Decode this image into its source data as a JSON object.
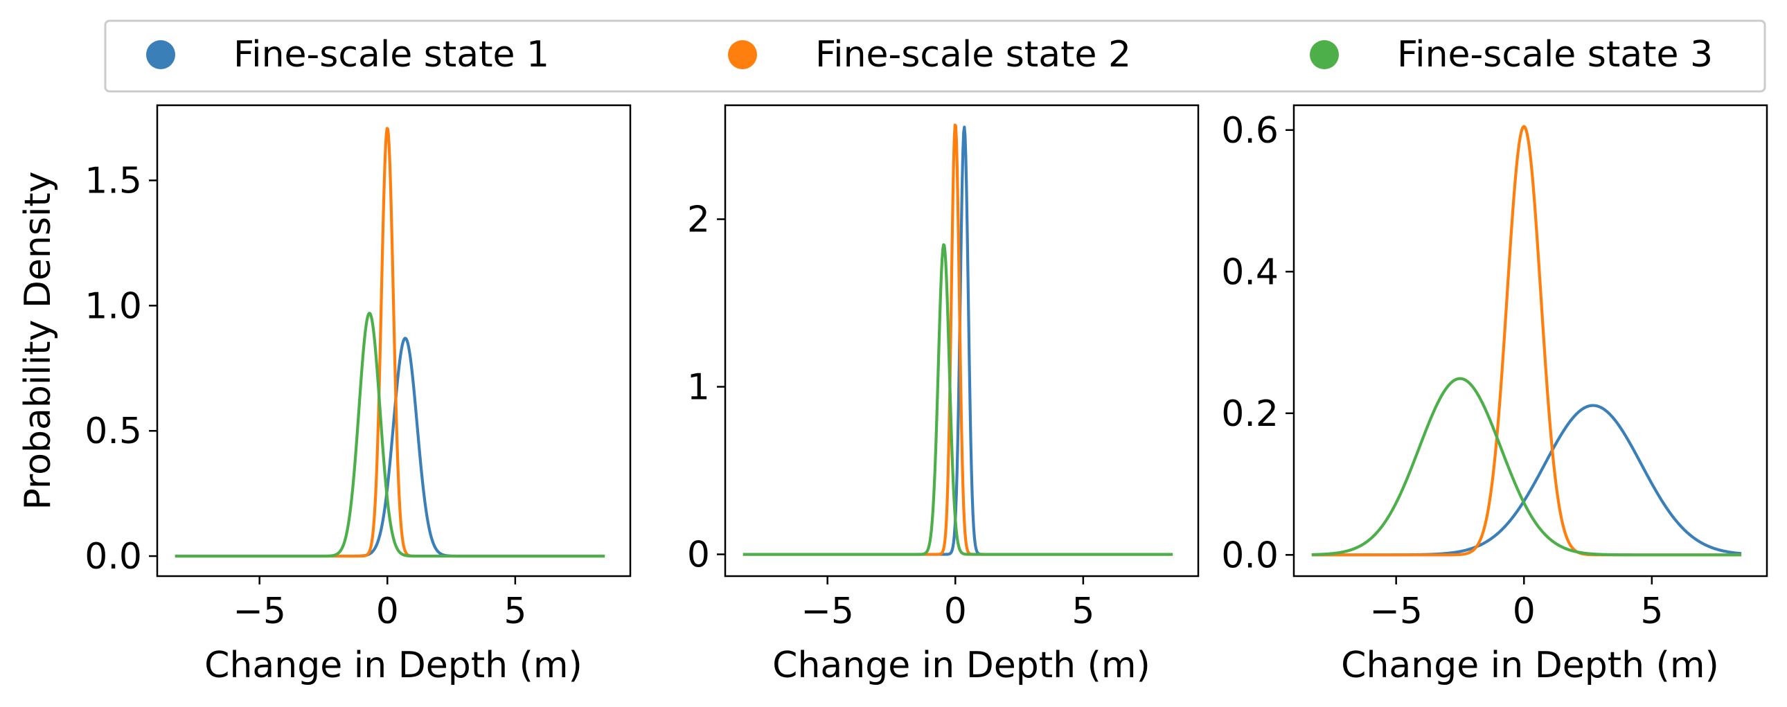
{
  "colors": {
    "state1": "#3a7fb8",
    "state2": "#ff7f0e",
    "state3": "#4daf4a",
    "axis": "#000000",
    "legend_border": "#cccccc"
  },
  "legend": {
    "placement": "top",
    "items": [
      "Fine-scale state 1",
      "Fine-scale state 2",
      "Fine-scale state 3"
    ]
  },
  "chart_data": [
    {
      "type": "line",
      "xlabel": "Change in Depth (m)",
      "ylabel": "Probability Density",
      "xlim": [
        -9,
        9.5
      ],
      "ylim": [
        -0.08,
        1.8
      ],
      "xticks": [
        -5,
        0,
        5
      ],
      "xticklabels": [
        "−5",
        "0",
        "5"
      ],
      "yticks": [
        0.0,
        0.5,
        1.0,
        1.5
      ],
      "yticklabels": [
        "0.0",
        "0.5",
        "1.0",
        "1.5"
      ],
      "x_range": [
        -8.3,
        8.5
      ],
      "grid": false,
      "series": [
        {
          "name": "Fine-scale state 1",
          "distribution": "normal",
          "mean": 0.7,
          "sd": 0.46,
          "peak": 0.87
        },
        {
          "name": "Fine-scale state 2",
          "distribution": "normal",
          "mean": 0.0,
          "sd": 0.233,
          "peak": 1.71
        },
        {
          "name": "Fine-scale state 3",
          "distribution": "normal",
          "mean": -0.7,
          "sd": 0.41,
          "peak": 0.97
        }
      ]
    },
    {
      "type": "line",
      "xlabel": "Change in Depth (m)",
      "ylabel": "",
      "xlim": [
        -9,
        9.5
      ],
      "ylim": [
        -0.13,
        2.68
      ],
      "xticks": [
        -5,
        0,
        5
      ],
      "xticklabels": [
        "−5",
        "0",
        "5"
      ],
      "yticks": [
        0,
        1,
        2
      ],
      "yticklabels": [
        "0",
        "1",
        "2"
      ],
      "x_range": [
        -8.3,
        8.5
      ],
      "grid": false,
      "series": [
        {
          "name": "Fine-scale state 1",
          "distribution": "normal",
          "mean": 0.35,
          "sd": 0.156,
          "peak": 2.55
        },
        {
          "name": "Fine-scale state 2",
          "distribution": "normal",
          "mean": 0.0,
          "sd": 0.155,
          "peak": 2.57
        },
        {
          "name": "Fine-scale state 3",
          "distribution": "normal",
          "mean": -0.45,
          "sd": 0.215,
          "peak": 1.85
        }
      ]
    },
    {
      "type": "line",
      "xlabel": "Change in Depth (m)",
      "ylabel": "",
      "xlim": [
        -9,
        9.5
      ],
      "ylim": [
        -0.03,
        0.635
      ],
      "xticks": [
        -5,
        0,
        5
      ],
      "xticklabels": [
        "−5",
        "0",
        "5"
      ],
      "yticks": [
        0.0,
        0.2,
        0.4,
        0.6
      ],
      "yticklabels": [
        "0.0",
        "0.2",
        "0.4",
        "0.6"
      ],
      "x_range": [
        -8.3,
        8.5
      ],
      "grid": false,
      "series": [
        {
          "name": "Fine-scale state 1",
          "distribution": "normal",
          "mean": 2.7,
          "sd": 1.89,
          "peak": 0.211
        },
        {
          "name": "Fine-scale state 2",
          "distribution": "normal",
          "mean": 0.0,
          "sd": 0.66,
          "peak": 0.605
        },
        {
          "name": "Fine-scale state 3",
          "distribution": "normal",
          "mean": -2.5,
          "sd": 1.6,
          "peak": 0.249
        }
      ]
    }
  ]
}
